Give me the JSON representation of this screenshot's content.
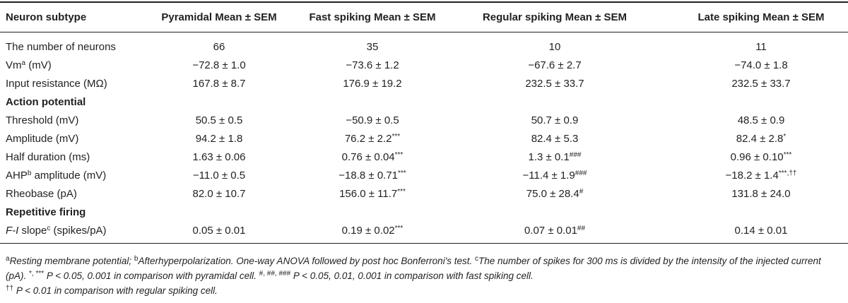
{
  "header": {
    "subtype": "Neuron subtype",
    "pyramidal": "Pyramidal Mean ± SEM",
    "fast": "Fast spiking Mean ± SEM",
    "regular": "Regular spiking Mean ± SEM",
    "late": "Late spiking Mean ± SEM"
  },
  "rows": {
    "num": {
      "label": "The number of neurons",
      "p": "66",
      "f": "35",
      "r": "10",
      "l": "11"
    },
    "vm": {
      "label": "Vm",
      "label_sup": "a",
      "label_unit": " (mV)",
      "p": "−72.8 ± 1.0",
      "f": "−73.6 ± 1.2",
      "r": "−67.6 ± 2.7",
      "l": "−74.0 ± 1.8"
    },
    "ir": {
      "label": "Input resistance (MΩ)",
      "p": "167.8 ± 8.7",
      "f": "176.9 ± 19.2",
      "r": "232.5 ± 33.7",
      "l": "232.5 ± 33.7"
    },
    "ap_section": "Action potential",
    "threshold": {
      "label": "Threshold (mV)",
      "p": "50.5 ± 0.5",
      "f": "−50.9 ± 0.5",
      "r": "50.7 ± 0.9",
      "l": "48.5 ± 0.9"
    },
    "amplitude": {
      "label": "Amplitude (mV)",
      "p": "94.2 ± 1.8",
      "f": "76.2 ± 2.2",
      "f_sup": "***",
      "r": "82.4 ± 5.3",
      "l": "82.4 ± 2.8",
      "l_sup": "*"
    },
    "half": {
      "label": "Half duration (ms)",
      "p": "1.63 ± 0.06",
      "f": "0.76 ± 0.04",
      "f_sup": "***",
      "r": "1.3 ± 0.1",
      "r_sup": "###",
      "l": "0.96 ± 0.10",
      "l_sup": "***"
    },
    "ahp": {
      "label": "AHP",
      "label_sup": "b",
      "label_unit": " amplitude (mV)",
      "p": "−11.0 ± 0.5",
      "f": "−18.8 ± 0.71",
      "f_sup": "***",
      "r": "−11.4 ± 1.9",
      "r_sup": "###",
      "l": "−18.2 ± 1.4",
      "l_sup": "***,††"
    },
    "rheobase": {
      "label": "Rheobase (pA)",
      "p": "82.0 ± 10.7",
      "f": "156.0 ± 11.7",
      "f_sup": "***",
      "r": "75.0 ± 28.4",
      "r_sup": "#",
      "l": "131.8 ± 24.0"
    },
    "rf_section": "Repetitive firing",
    "fi": {
      "label": "F-I",
      "label_mid": " slope",
      "label_sup": "c",
      "label_unit": " (spikes/pA)",
      "p": "0.05 ± 0.01",
      "f": "0.19 ± 0.02",
      "f_sup": "***",
      "r": "0.07 ± 0.01",
      "r_sup": "##",
      "l": "0.14 ± 0.01"
    }
  },
  "footnotes": {
    "a_mark": "a",
    "a_text": "Resting membrane potential; ",
    "b_mark": "b",
    "b_text": "Afterhyperpolarization. One-way ANOVA followed by post hoc Bonferroni's test. ",
    "c_mark": "c",
    "c_text": "The number of spikes for 300 ms is divided by the intensity of the injected current (pA). ",
    "star_marks": "*, ***",
    "star_text": " P < 0.05, 0.001 in comparison with pyramidal cell. ",
    "hash_marks": "#, ##, ###",
    "hash_text": " P < 0.05, 0.01, 0.001 in comparison with fast spiking cell.",
    "dagger_mark": "††",
    "dagger_text": " P < 0.01 in comparison with regular spiking cell."
  }
}
